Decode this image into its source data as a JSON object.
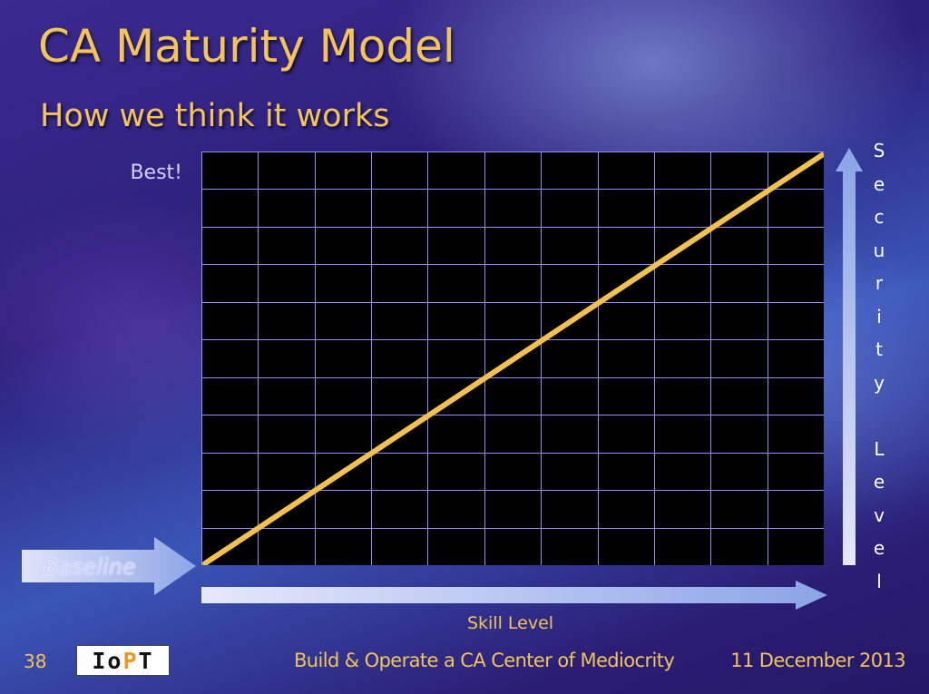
{
  "slide": {
    "title": "CA Maturity Model",
    "subtitle": "How we think it works",
    "best_label": "Best!",
    "baseline_label": "Baseline",
    "footer": {
      "slide_number": "38",
      "logo_text_left": "Io",
      "logo_text_mid": "P",
      "logo_text_right": "T",
      "center_text": "Build & Operate a CA Center of Mediocrity",
      "date": "11 December 2013"
    }
  },
  "chart_data": {
    "type": "line",
    "xlabel": "Skill Level",
    "ylabel": "Security Level",
    "ylabel_letters": [
      "S",
      "e",
      "c",
      "u",
      "r",
      "i",
      "t",
      "y",
      "",
      "L",
      "e",
      "v",
      "e",
      "l"
    ],
    "grid": true,
    "grid_columns": 11,
    "grid_rows": 11,
    "series": [
      {
        "x": [
          0,
          1
        ],
        "y": [
          0,
          1
        ]
      }
    ],
    "xlim": [
      0,
      1
    ],
    "ylim": [
      0,
      1
    ],
    "colors": {
      "line": "#f2c14e",
      "grid": "#8f8ff5",
      "background": "#000000",
      "axis_arrow": "#c8cdf4"
    }
  }
}
